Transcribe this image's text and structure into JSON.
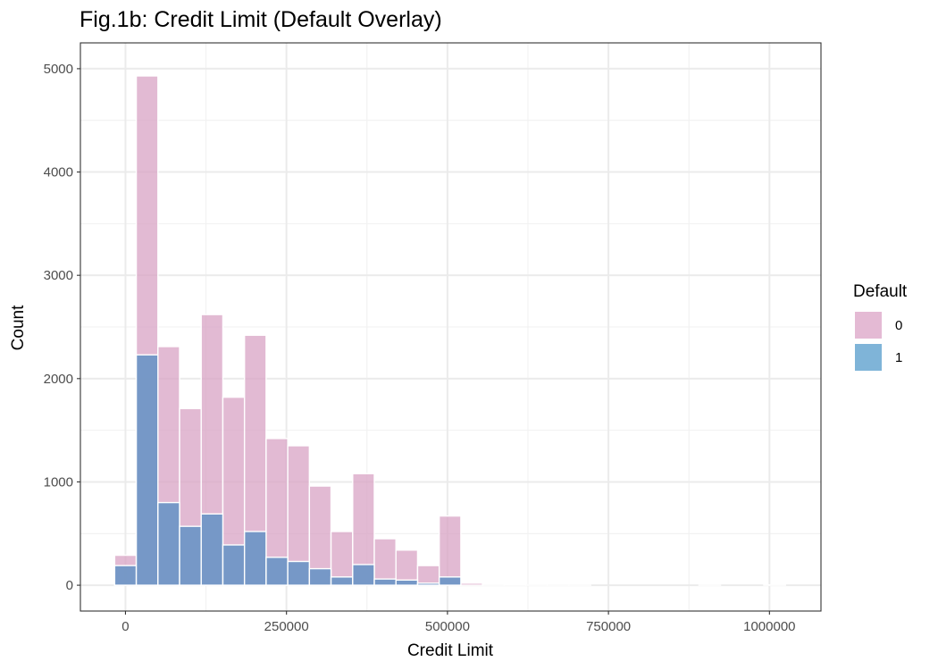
{
  "chart_data": {
    "type": "bar",
    "title": "Fig.1b: Credit Limit (Default Overlay)",
    "xlabel": "Credit Limit",
    "ylabel": "Count",
    "xlim": [
      -70000,
      1080000
    ],
    "ylim": [
      -250,
      5250
    ],
    "x_ticks": [
      0,
      250000,
      500000,
      750000,
      1000000
    ],
    "x_tick_labels": [
      "0",
      "250000",
      "500000",
      "750000",
      "1000000"
    ],
    "y_ticks": [
      0,
      1000,
      2000,
      3000,
      4000,
      5000
    ],
    "y_tick_labels": [
      "0",
      "1000",
      "2000",
      "3000",
      "4000",
      "5000"
    ],
    "grid": true,
    "bin_width": 33600,
    "bin_centers": [
      0,
      33600,
      67200,
      100800,
      134400,
      168000,
      201600,
      235200,
      268800,
      302400,
      336000,
      369600,
      403200,
      436800,
      470400,
      504000,
      537600,
      571200,
      604800,
      638400,
      672000,
      705600,
      739200,
      772800,
      806400,
      840000,
      873600,
      907200,
      940800,
      974400,
      1008000
    ],
    "series": [
      {
        "name": "0",
        "color": "#d8a3c4",
        "values": [
          290,
          4930,
          2310,
          1710,
          2620,
          1820,
          2420,
          1420,
          1350,
          960,
          520,
          1080,
          450,
          340,
          190,
          670,
          20,
          2,
          12,
          2,
          1,
          1,
          0,
          0,
          0,
          0,
          0,
          1,
          0,
          0,
          3
        ]
      },
      {
        "name": "1",
        "color": "#6a95c5",
        "values": [
          190,
          2230,
          800,
          570,
          690,
          390,
          520,
          270,
          230,
          160,
          80,
          200,
          60,
          50,
          20,
          80,
          0,
          0,
          0,
          0,
          0,
          0,
          0,
          0,
          0,
          0,
          0,
          0,
          0,
          0,
          0
        ]
      }
    ],
    "legend": {
      "title": "Default",
      "position": "right",
      "entries": [
        {
          "label": "0",
          "color": "#e4bad4"
        },
        {
          "label": "1",
          "color": "#7fb4d8"
        }
      ]
    }
  }
}
